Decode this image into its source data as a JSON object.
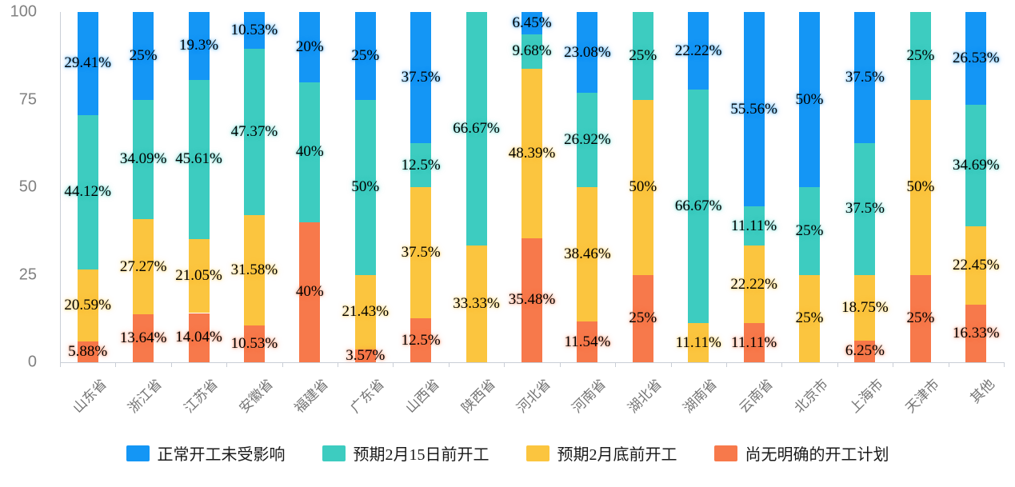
{
  "chart_data": {
    "type": "bar",
    "stacked": true,
    "title": "",
    "xlabel": "",
    "ylabel": "",
    "ylim": [
      0,
      100
    ],
    "yticks": [
      0,
      25,
      50,
      75,
      100
    ],
    "grid": false,
    "legend_position": "bottom",
    "value_suffix": "%",
    "stack_order": "bottom-to-top is reverse of series order (last series at bottom)",
    "categories": [
      "山东省",
      "浙江省",
      "江苏省",
      "安徽省",
      "福建省",
      "广东省",
      "山西省",
      "陕西省",
      "河北省",
      "河南省",
      "湖北省",
      "湖南省",
      "云南省",
      "北京市",
      "上海市",
      "天津市",
      "其他"
    ],
    "series": [
      {
        "name": "正常开工未受影响",
        "color": "#1496F5",
        "values": [
          29.41,
          25,
          19.3,
          10.53,
          20,
          25,
          37.5,
          0,
          6.45,
          23.08,
          0,
          22.22,
          55.56,
          50,
          37.5,
          0,
          26.53
        ]
      },
      {
        "name": "预期2月15日前开工",
        "color": "#3DCCC0",
        "values": [
          44.12,
          34.09,
          45.61,
          47.37,
          40,
          50,
          12.5,
          66.67,
          9.68,
          26.92,
          25,
          66.67,
          11.11,
          25,
          37.5,
          25,
          34.69
        ]
      },
      {
        "name": "预期2月底前开工",
        "color": "#FBC53F",
        "values": [
          20.59,
          27.27,
          21.05,
          31.58,
          0,
          21.43,
          37.5,
          33.33,
          48.39,
          38.46,
          50,
          11.11,
          22.22,
          25,
          18.75,
          50,
          22.45
        ]
      },
      {
        "name": "尚无明确的开工计划",
        "color": "#F7794B",
        "values": [
          5.88,
          13.64,
          14.04,
          10.53,
          40,
          3.57,
          12.5,
          0,
          35.48,
          11.54,
          25,
          0,
          11.11,
          0,
          6.25,
          25,
          16.33
        ]
      }
    ]
  },
  "style": {
    "background": "#ffffff",
    "axis_color": "#c9ced6",
    "y_tick_label_color": "#818181",
    "category_label_color": "#757575",
    "data_label_color": "#000000"
  }
}
